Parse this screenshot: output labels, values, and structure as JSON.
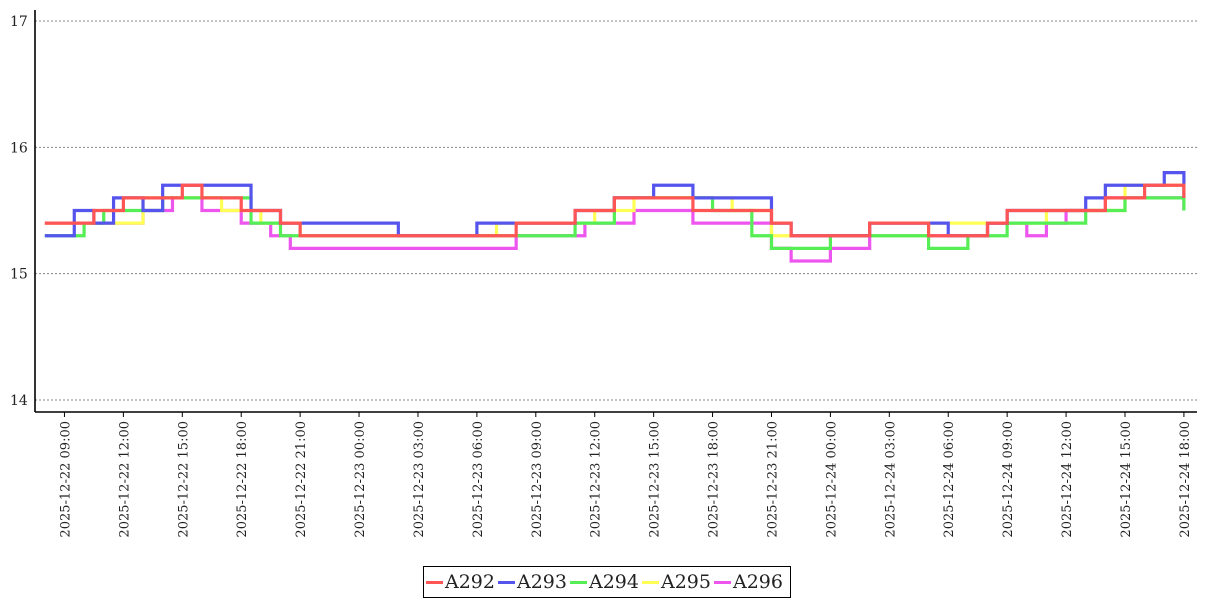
{
  "chart_data": {
    "type": "line",
    "title": "",
    "xlabel": "",
    "ylabel": "",
    "ylim": [
      14,
      17
    ],
    "xlim": [
      "2025-12-22 07:30",
      "2025-12-24 18:40"
    ],
    "grid": "horizontal-dashed",
    "legend_position": "bottom-center",
    "y_ticks": [
      "14",
      "15",
      "16",
      "17"
    ],
    "x_ticks": [
      "2025-12-22 09:00",
      "2025-12-22 12:00",
      "2025-12-22 15:00",
      "2025-12-22 18:00",
      "2025-12-22 21:00",
      "2025-12-23 00:00",
      "2025-12-23 03:00",
      "2025-12-23 06:00",
      "2025-12-23 09:00",
      "2025-12-23 12:00",
      "2025-12-23 15:00",
      "2025-12-23 18:00",
      "2025-12-23 21:00",
      "2025-12-24 00:00",
      "2025-12-24 03:00",
      "2025-12-24 06:00",
      "2025-12-24 09:00",
      "2025-12-24 12:00",
      "2025-12-24 15:00",
      "2025-12-24 18:00"
    ],
    "series": [
      {
        "name": "A292",
        "color": "#ff5555",
        "x": [
          "2025-12-22 08:00",
          "2025-12-22 10:30",
          "2025-12-22 12:00",
          "2025-12-22 14:00",
          "2025-12-22 15:00",
          "2025-12-22 16:00",
          "2025-12-22 18:00",
          "2025-12-22 20:00",
          "2025-12-22 21:00",
          "2025-12-22 23:00",
          "2025-12-23 02:00",
          "2025-12-23 05:00",
          "2025-12-23 08:00",
          "2025-12-23 10:00",
          "2025-12-23 11:00",
          "2025-12-23 13:00",
          "2025-12-23 15:00",
          "2025-12-23 17:00",
          "2025-12-23 19:00",
          "2025-12-23 20:00",
          "2025-12-23 21:00",
          "2025-12-23 22:00",
          "2025-12-24 00:00",
          "2025-12-24 02:00",
          "2025-12-24 04:00",
          "2025-12-24 05:00",
          "2025-12-24 06:00",
          "2025-12-24 08:00",
          "2025-12-24 09:00",
          "2025-12-24 10:00",
          "2025-12-24 12:00",
          "2025-12-24 14:00",
          "2025-12-24 16:00",
          "2025-12-24 18:00"
        ],
        "y": [
          15.4,
          15.5,
          15.6,
          15.6,
          15.7,
          15.6,
          15.5,
          15.4,
          15.3,
          15.3,
          15.3,
          15.3,
          15.4,
          15.4,
          15.5,
          15.6,
          15.6,
          15.5,
          15.5,
          15.5,
          15.4,
          15.3,
          15.3,
          15.4,
          15.4,
          15.3,
          15.3,
          15.4,
          15.5,
          15.5,
          15.5,
          15.6,
          15.7,
          15.6
        ]
      },
      {
        "name": "A293",
        "color": "#5555ee",
        "x": [
          "2025-12-22 08:00",
          "2025-12-22 09:30",
          "2025-12-22 10:30",
          "2025-12-22 11:30",
          "2025-12-22 13:00",
          "2025-12-22 14:00",
          "2025-12-22 17:00",
          "2025-12-22 18:30",
          "2025-12-22 20:00",
          "2025-12-22 22:00",
          "2025-12-23 02:00",
          "2025-12-23 06:00",
          "2025-12-23 09:00",
          "2025-12-23 11:00",
          "2025-12-23 13:00",
          "2025-12-23 15:00",
          "2025-12-23 17:00",
          "2025-12-23 19:00",
          "2025-12-23 21:00",
          "2025-12-23 22:00",
          "2025-12-24 01:00",
          "2025-12-24 02:00",
          "2025-12-24 04:00",
          "2025-12-24 06:00",
          "2025-12-24 08:00",
          "2025-12-24 09:00",
          "2025-12-24 11:00",
          "2025-12-24 13:00",
          "2025-12-24 14:00",
          "2025-12-24 17:00",
          "2025-12-24 18:00"
        ],
        "y": [
          15.3,
          15.5,
          15.4,
          15.6,
          15.5,
          15.7,
          15.7,
          15.5,
          15.4,
          15.4,
          15.3,
          15.4,
          15.4,
          15.5,
          15.6,
          15.7,
          15.6,
          15.6,
          15.4,
          15.3,
          15.3,
          15.4,
          15.4,
          15.3,
          15.4,
          15.5,
          15.5,
          15.6,
          15.7,
          15.8,
          15.6
        ]
      },
      {
        "name": "A294",
        "color": "#55ee55",
        "x": [
          "2025-12-22 08:00",
          "2025-12-22 10:00",
          "2025-12-22 11:00",
          "2025-12-22 13:00",
          "2025-12-22 14:00",
          "2025-12-22 17:00",
          "2025-12-22 18:30",
          "2025-12-22 20:00",
          "2025-12-22 21:00",
          "2025-12-23 02:00",
          "2025-12-23 06:00",
          "2025-12-23 09:00",
          "2025-12-23 11:00",
          "2025-12-23 13:00",
          "2025-12-23 16:00",
          "2025-12-23 18:00",
          "2025-12-23 20:00",
          "2025-12-23 21:00",
          "2025-12-24 00:00",
          "2025-12-24 02:00",
          "2025-12-24 03:00",
          "2025-12-24 05:00",
          "2025-12-24 07:00",
          "2025-12-24 09:00",
          "2025-12-24 11:00",
          "2025-12-24 13:00",
          "2025-12-24 15:00",
          "2025-12-24 17:00",
          "2025-12-24 18:00"
        ],
        "y": [
          15.3,
          15.4,
          15.5,
          15.5,
          15.6,
          15.6,
          15.4,
          15.3,
          15.3,
          15.3,
          15.3,
          15.3,
          15.4,
          15.6,
          15.6,
          15.5,
          15.3,
          15.2,
          15.3,
          15.3,
          15.3,
          15.2,
          15.3,
          15.4,
          15.4,
          15.5,
          15.6,
          15.6,
          15.5
        ]
      },
      {
        "name": "A295",
        "color": "#ffff55",
        "x": [
          "2025-12-22 08:00",
          "2025-12-22 11:00",
          "2025-12-22 13:00",
          "2025-12-22 15:00",
          "2025-12-22 17:00",
          "2025-12-22 19:00",
          "2025-12-22 21:00",
          "2025-12-23 03:00",
          "2025-12-23 07:00",
          "2025-12-23 10:00",
          "2025-12-23 12:00",
          "2025-12-23 14:00",
          "2025-12-23 17:00",
          "2025-12-23 19:00",
          "2025-12-23 21:00",
          "2025-12-24 00:00",
          "2025-12-24 02:00",
          "2025-12-24 05:00",
          "2025-12-24 07:00",
          "2025-12-24 09:00",
          "2025-12-24 11:00",
          "2025-12-24 13:00",
          "2025-12-24 15:00",
          "2025-12-24 17:00",
          "2025-12-24 18:00"
        ],
        "y": [
          15.4,
          15.4,
          15.6,
          15.6,
          15.5,
          15.4,
          15.3,
          15.3,
          15.4,
          15.4,
          15.5,
          15.6,
          15.6,
          15.5,
          15.3,
          15.3,
          15.3,
          15.4,
          15.4,
          15.4,
          15.5,
          15.5,
          15.7,
          15.7,
          15.6
        ]
      },
      {
        "name": "A296",
        "color": "#ee55ee",
        "x": [
          "2025-12-22 08:00",
          "2025-12-22 11:00",
          "2025-12-22 13:00",
          "2025-12-22 14:30",
          "2025-12-22 16:00",
          "2025-12-22 18:00",
          "2025-12-22 19:30",
          "2025-12-22 20:30",
          "2025-12-23 03:00",
          "2025-12-23 08:00",
          "2025-12-23 10:00",
          "2025-12-23 11:30",
          "2025-12-23 14:00",
          "2025-12-23 17:00",
          "2025-12-23 20:00",
          "2025-12-23 21:00",
          "2025-12-23 22:00",
          "2025-12-24 00:00",
          "2025-12-24 02:00",
          "2025-12-24 04:00",
          "2025-12-24 06:00",
          "2025-12-24 08:00",
          "2025-12-24 10:00",
          "2025-12-24 11:00",
          "2025-12-24 12:00",
          "2025-12-24 14:00",
          "2025-12-24 16:00",
          "2025-12-24 17:00",
          "2025-12-24 18:00"
        ],
        "y": [
          15.4,
          15.4,
          15.5,
          15.6,
          15.5,
          15.4,
          15.3,
          15.2,
          15.2,
          15.3,
          15.3,
          15.4,
          15.5,
          15.4,
          15.4,
          15.2,
          15.1,
          15.2,
          15.3,
          15.3,
          15.3,
          15.4,
          15.3,
          15.4,
          15.5,
          15.6,
          15.6,
          15.6,
          15.5
        ]
      }
    ]
  }
}
